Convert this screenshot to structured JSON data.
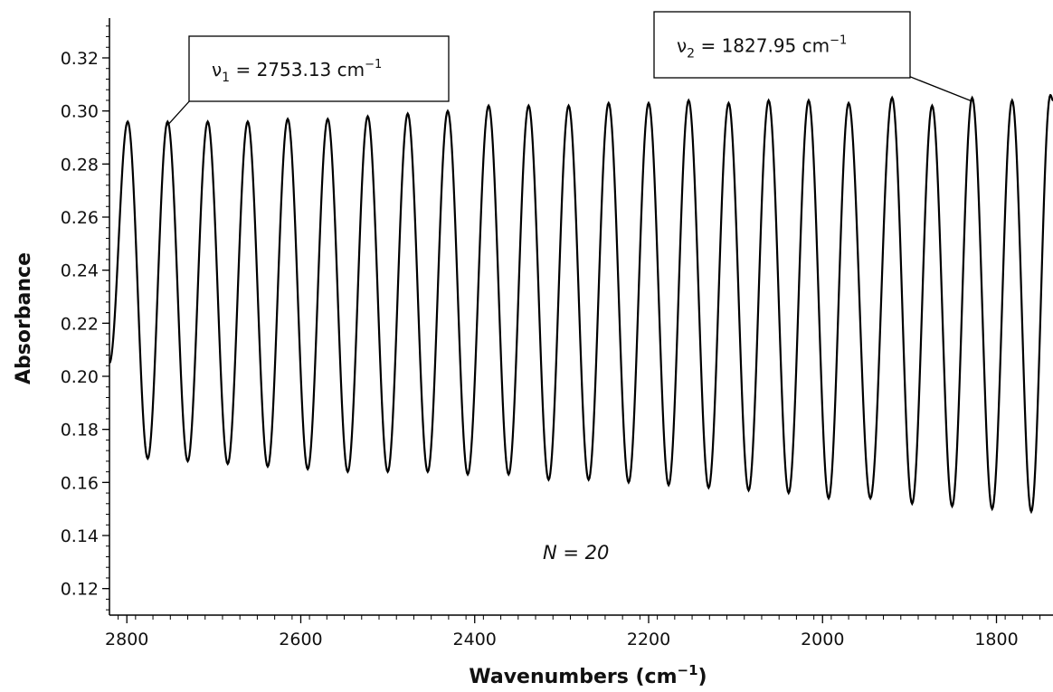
{
  "chart_data": {
    "type": "line",
    "xlabel": "Wavenumbers (cm",
    "xlabel_sup": "−1",
    "xlabel_close": ")",
    "ylabel": "Absorbance",
    "xlim": [
      2820,
      1735
    ],
    "x_reversed": true,
    "ylim": [
      0.11,
      0.335
    ],
    "x_ticks": [
      2800,
      2600,
      2400,
      2200,
      2000,
      1800
    ],
    "x_tick_labels": [
      "2800",
      "2600",
      "2400",
      "2200",
      "2000",
      "1800"
    ],
    "y_ticks": [
      0.12,
      0.14,
      0.16,
      0.18,
      0.2,
      0.22,
      0.24,
      0.26,
      0.28,
      0.3,
      0.32
    ],
    "y_tick_labels": [
      "0.12",
      "0.14",
      "0.16",
      "0.18",
      "0.20",
      "0.22",
      "0.24",
      "0.26",
      "0.28",
      "0.30",
      "0.32"
    ],
    "grid": false,
    "line_color": "#000000",
    "series": [
      {
        "x_start": 2820,
        "x_end": 1735,
        "peaks": {
          "x": [
            2799,
            2753.13,
            2707,
            2661,
            2615,
            2569,
            2523,
            2477,
            2431,
            2384,
            2338,
            2292,
            2246,
            2200,
            2154,
            2108,
            2062,
            2016,
            1970,
            1920,
            1874,
            1827.95,
            1782,
            1738
          ],
          "y": [
            0.296,
            0.296,
            0.296,
            0.296,
            0.297,
            0.297,
            0.298,
            0.299,
            0.3,
            0.302,
            0.302,
            0.302,
            0.303,
            0.303,
            0.304,
            0.303,
            0.304,
            0.304,
            0.303,
            0.305,
            0.302,
            0.305,
            0.304,
            0.306
          ]
        },
        "valleys": {
          "x": [
            2776,
            2730,
            2684,
            2638,
            2592,
            2546,
            2500,
            2454,
            2408,
            2361,
            2315,
            2269,
            2223,
            2177,
            2131,
            2085,
            2039,
            1993,
            1945,
            1897,
            1851,
            1805,
            1760
          ],
          "y": [
            0.169,
            0.168,
            0.167,
            0.166,
            0.165,
            0.164,
            0.164,
            0.164,
            0.163,
            0.163,
            0.161,
            0.161,
            0.16,
            0.159,
            0.158,
            0.157,
            0.156,
            0.154,
            0.154,
            0.152,
            0.151,
            0.15,
            0.149
          ]
        },
        "y_start": 0.205
      }
    ],
    "annotations": [
      {
        "nu": "ν",
        "sub": "1",
        "text": " = 2753.13 cm",
        "sup": "−1",
        "target_x": 2753.13,
        "target_y": 0.296
      },
      {
        "nu": "ν",
        "sub": "2",
        "text": " = 1827.95 cm",
        "sup": "−1",
        "target_x": 1827.95,
        "target_y": 0.305
      }
    ],
    "note": "N = 20"
  }
}
